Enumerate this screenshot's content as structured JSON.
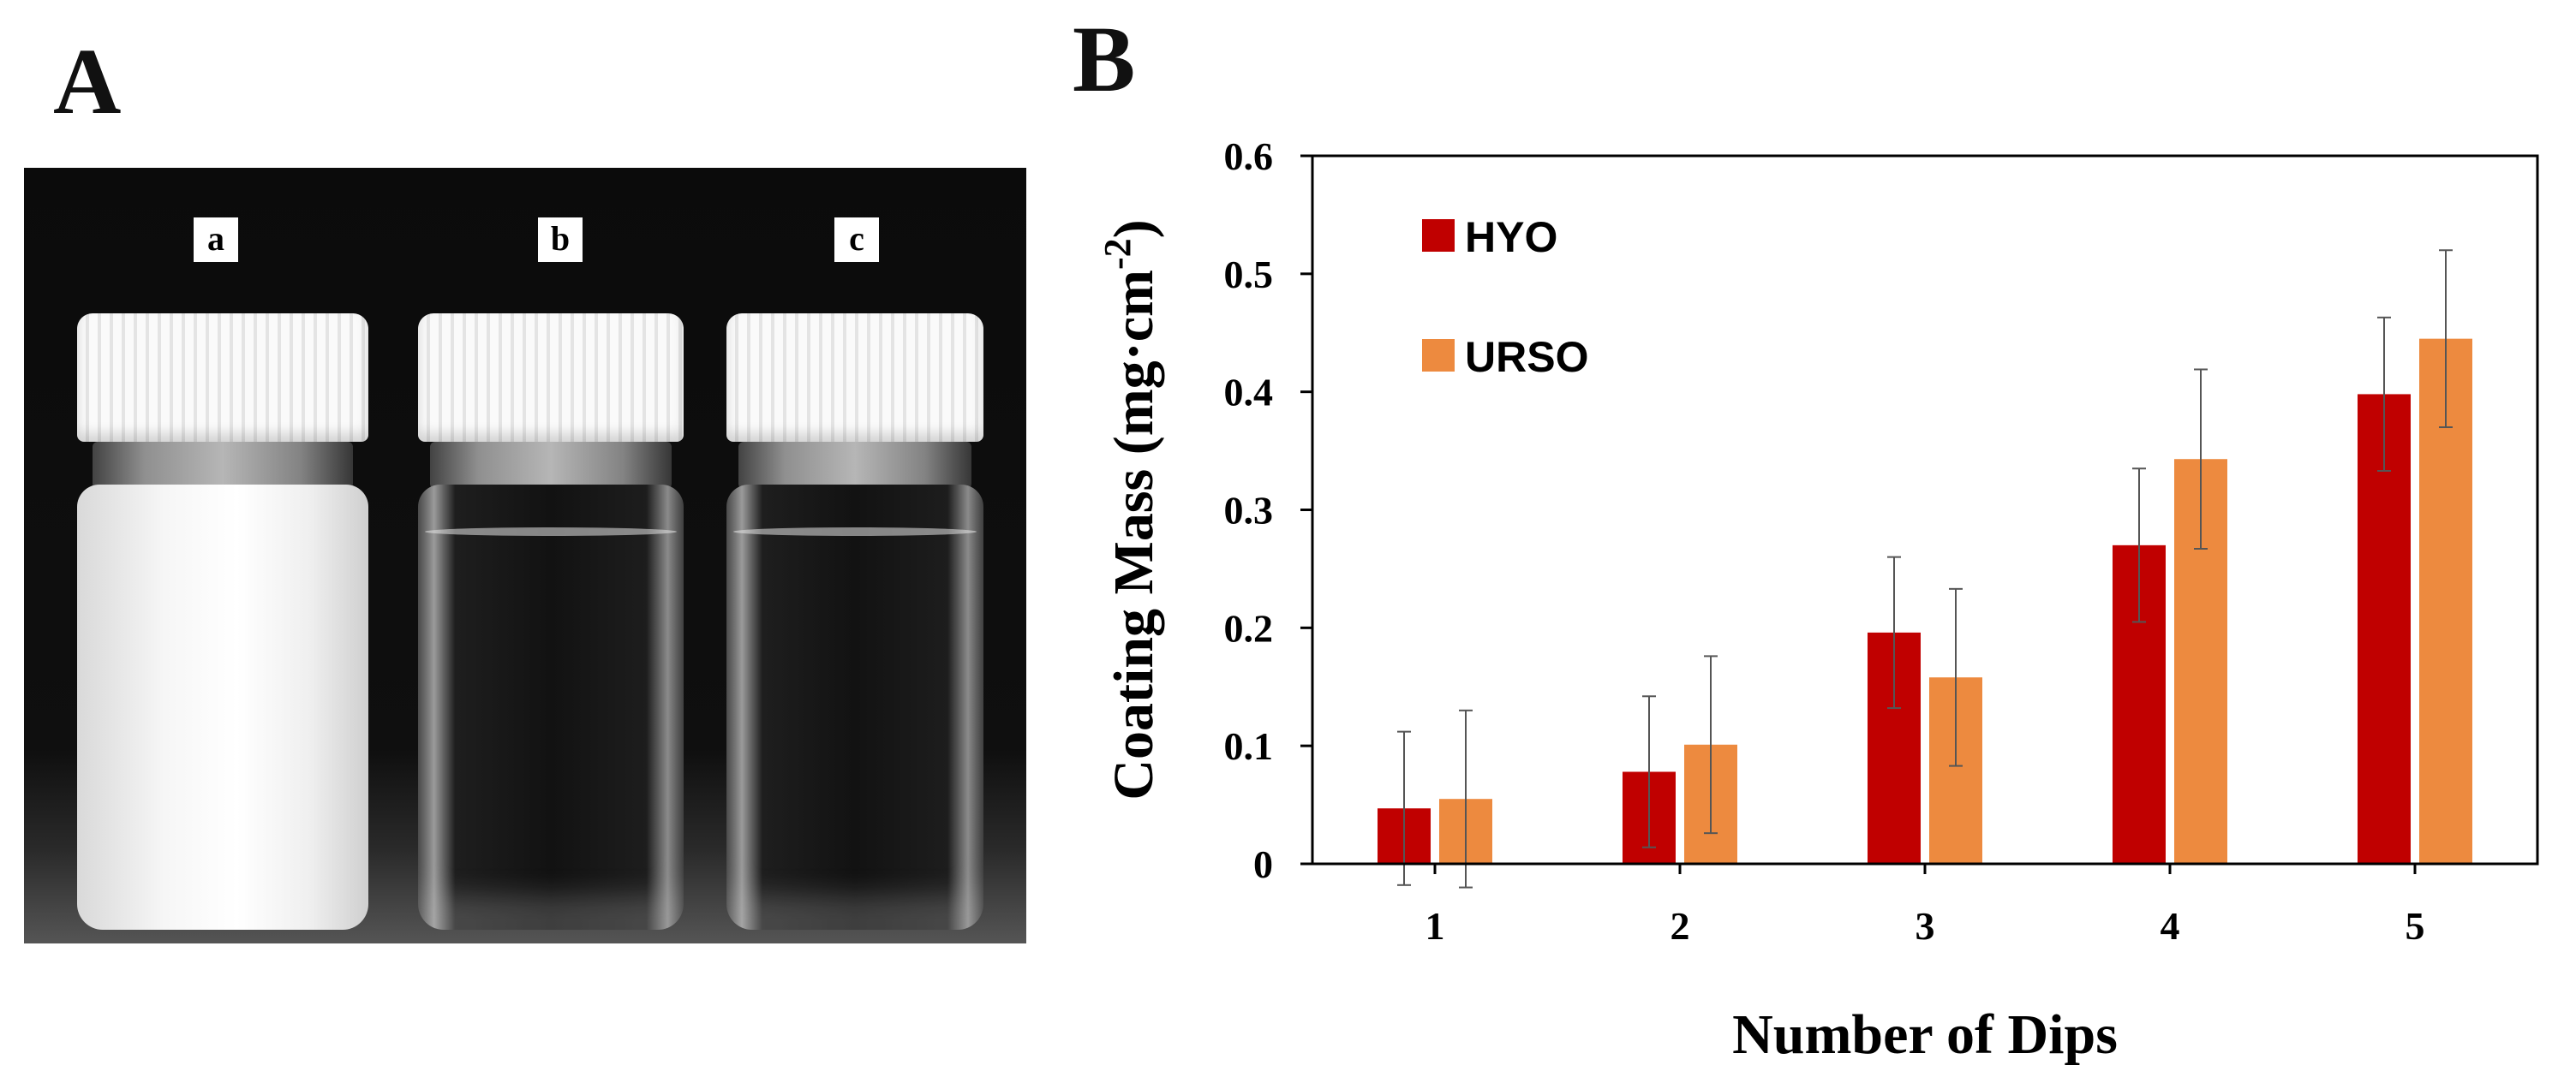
{
  "panels": {
    "a": "A",
    "b": "B"
  },
  "photo": {
    "vial_labels": [
      "a",
      "b",
      "c"
    ]
  },
  "colors": {
    "HYO": "#c00000",
    "URSO": "#ed8a3f"
  },
  "chart_data": {
    "type": "bar",
    "categories": [
      "1",
      "2",
      "3",
      "4",
      "5"
    ],
    "series": [
      {
        "name": "HYO",
        "values": [
          0.047,
          0.078,
          0.196,
          0.27,
          0.398
        ],
        "errors": [
          0.065,
          0.064,
          0.064,
          0.065,
          0.065
        ]
      },
      {
        "name": "URSO",
        "values": [
          0.055,
          0.101,
          0.158,
          0.343,
          0.445
        ],
        "errors": [
          0.075,
          0.075,
          0.075,
          0.076,
          0.075
        ]
      }
    ],
    "xlabel": "Number of Dips",
    "ylabel_main": "Coating Mass (mg·cm",
    "ylabel_sup": "-2",
    "ylabel_close": ")",
    "ylim": [
      0,
      0.6
    ],
    "yticks": [
      "0",
      "0.1",
      "0.2",
      "0.3",
      "0.4",
      "0.5",
      "0.6"
    ],
    "grid": false,
    "legend_position": "top-left"
  }
}
